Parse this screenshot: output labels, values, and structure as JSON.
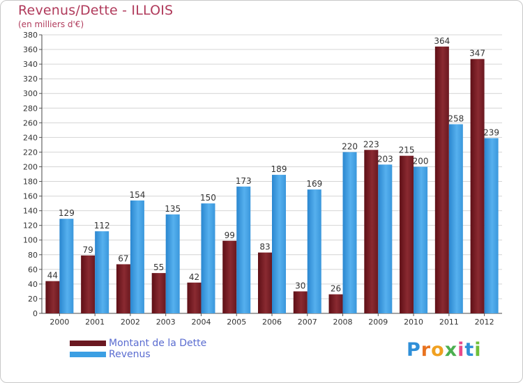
{
  "header": {
    "title": "Revenus/Dette - ILLOIS",
    "subtitle": "(en milliers d'€)"
  },
  "brand": {
    "name": "Proxiti",
    "letter_colors": [
      "#2f8fd8",
      "#e8731f",
      "#f0a020",
      "#4caf50",
      "#e84a8a",
      "#2f8fd8",
      "#6fbf3a"
    ]
  },
  "chart_data": {
    "type": "bar",
    "categories": [
      "2000",
      "2001",
      "2002",
      "2003",
      "2004",
      "2005",
      "2006",
      "2007",
      "2008",
      "2009",
      "2010",
      "2011",
      "2012"
    ],
    "series": [
      {
        "name": "Montant de la Dette",
        "color": "#7a1e26",
        "values": [
          44,
          79,
          67,
          55,
          42,
          99,
          83,
          30,
          26,
          223,
          215,
          364,
          347
        ]
      },
      {
        "name": "Revenus",
        "color": "#3b9fe3",
        "values": [
          129,
          112,
          154,
          135,
          150,
          173,
          189,
          169,
          220,
          203,
          200,
          258,
          239
        ]
      }
    ],
    "ylim": [
      0,
      380
    ],
    "ytick_step": 20,
    "grid": true,
    "legend_position": "bottom-left"
  }
}
